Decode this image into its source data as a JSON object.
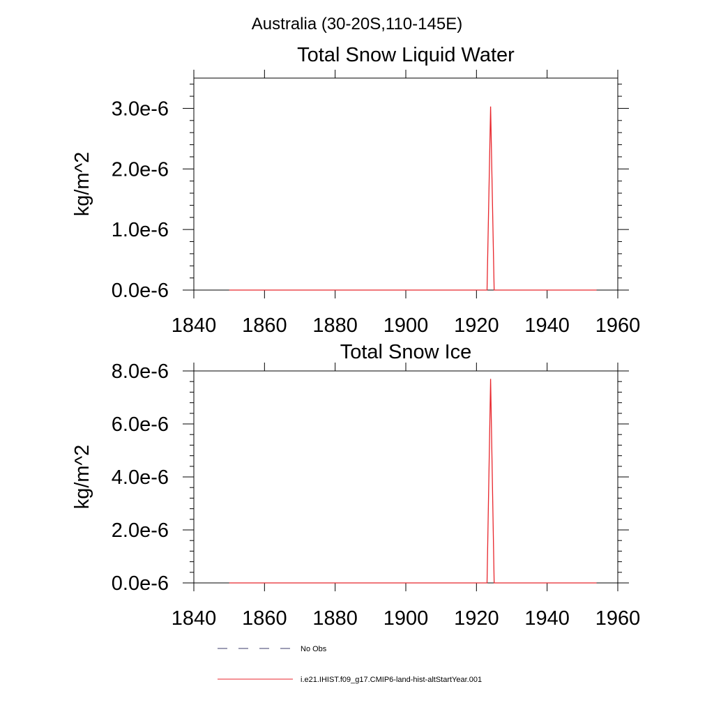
{
  "figure": {
    "title": "Australia (30-20S,110-145E)"
  },
  "chart_data": [
    {
      "type": "line",
      "title": "Total Snow Liquid Water",
      "xlabel": "",
      "ylabel": "kg/m^2",
      "xlim": [
        1840,
        1960
      ],
      "ylim": [
        0,
        3.5e-06
      ],
      "xticks": [
        1840,
        1860,
        1880,
        1900,
        1920,
        1940,
        1960
      ],
      "xtick_labels": [
        "1840",
        "1860",
        "1880",
        "1900",
        "1920",
        "1940",
        "1960"
      ],
      "yticks": [
        0,
        1e-06,
        2e-06,
        3e-06
      ],
      "ytick_labels": [
        "0.0e-6",
        "1.0e-6",
        "2.0e-6",
        "3.0e-6"
      ],
      "grid": false,
      "series": [
        {
          "name": "i.e21.IHIST.f09_g17.CMIP6-land-hist-altStartYear.001",
          "color": "#e8262c",
          "x": [
            1850,
            1923,
            1924,
            1925,
            1954
          ],
          "y": [
            0,
            0,
            3.03e-06,
            0,
            0
          ]
        }
      ]
    },
    {
      "type": "line",
      "title": "Total Snow Ice",
      "xlabel": "",
      "ylabel": "kg/m^2",
      "xlim": [
        1840,
        1960
      ],
      "ylim": [
        0,
        8e-06
      ],
      "xticks": [
        1840,
        1860,
        1880,
        1900,
        1920,
        1940,
        1960
      ],
      "xtick_labels": [
        "1840",
        "1860",
        "1880",
        "1900",
        "1920",
        "1940",
        "1960"
      ],
      "yticks": [
        0,
        2e-06,
        4e-06,
        6e-06,
        8e-06
      ],
      "ytick_labels": [
        "0.0e-6",
        "2.0e-6",
        "4.0e-6",
        "6.0e-6",
        "8.0e-6"
      ],
      "grid": false,
      "series": [
        {
          "name": "i.e21.IHIST.f09_g17.CMIP6-land-hist-altStartYear.001",
          "color": "#e8262c",
          "x": [
            1850,
            1923,
            1924,
            1925,
            1954
          ],
          "y": [
            0,
            0,
            7.7e-06,
            0,
            0
          ]
        }
      ]
    }
  ],
  "legend": {
    "placement": "bottom",
    "entries": [
      {
        "label": "No Obs",
        "style": "dashed",
        "color": "#3b3b6b"
      },
      {
        "label": "i.e21.IHIST.f09_g17.CMIP6-land-hist-altStartYear.001",
        "style": "solid",
        "color": "#e8262c"
      }
    ]
  }
}
